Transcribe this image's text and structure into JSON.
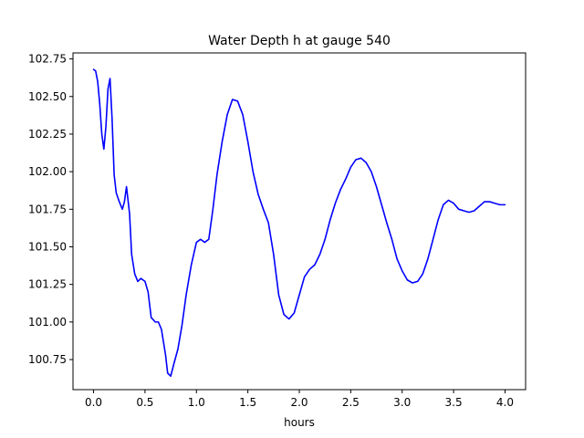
{
  "chart_data": {
    "type": "line",
    "title": "Water Depth h at gauge 540",
    "xlabel": "hours",
    "ylabel": "",
    "xlim": [
      -0.2,
      4.2
    ],
    "ylim": [
      100.55,
      102.79
    ],
    "grid": false,
    "x_ticks": [
      0.0,
      0.5,
      1.0,
      1.5,
      2.0,
      2.5,
      3.0,
      3.5,
      4.0
    ],
    "x_tick_labels": [
      "0.0",
      "0.5",
      "1.0",
      "1.5",
      "2.0",
      "2.5",
      "3.0",
      "3.5",
      "4.0"
    ],
    "y_ticks": [
      100.75,
      101.0,
      101.25,
      101.5,
      101.75,
      102.0,
      102.25,
      102.5,
      102.75
    ],
    "y_tick_labels": [
      "100.75",
      "101.00",
      "101.25",
      "101.50",
      "101.75",
      "102.00",
      "102.25",
      "102.50",
      "102.75"
    ],
    "series": [
      {
        "color": "#0000ff",
        "x": [
          0.0,
          0.02,
          0.04,
          0.06,
          0.08,
          0.1,
          0.12,
          0.14,
          0.16,
          0.18,
          0.2,
          0.22,
          0.25,
          0.28,
          0.3,
          0.32,
          0.35,
          0.37,
          0.4,
          0.43,
          0.46,
          0.5,
          0.53,
          0.56,
          0.6,
          0.63,
          0.66,
          0.7,
          0.72,
          0.75,
          0.78,
          0.82,
          0.86,
          0.9,
          0.95,
          1.0,
          1.04,
          1.08,
          1.12,
          1.16,
          1.2,
          1.25,
          1.3,
          1.35,
          1.4,
          1.45,
          1.5,
          1.55,
          1.6,
          1.65,
          1.7,
          1.75,
          1.8,
          1.85,
          1.9,
          1.95,
          2.0,
          2.05,
          2.1,
          2.15,
          2.2,
          2.25,
          2.3,
          2.35,
          2.4,
          2.45,
          2.5,
          2.55,
          2.6,
          2.65,
          2.7,
          2.75,
          2.8,
          2.85,
          2.9,
          2.95,
          3.0,
          3.05,
          3.1,
          3.15,
          3.2,
          3.25,
          3.3,
          3.35,
          3.4,
          3.45,
          3.5,
          3.55,
          3.6,
          3.65,
          3.7,
          3.75,
          3.8,
          3.85,
          3.9,
          3.95,
          4.0
        ],
        "values": [
          102.68,
          102.67,
          102.6,
          102.45,
          102.25,
          102.15,
          102.3,
          102.55,
          102.62,
          102.35,
          101.98,
          101.86,
          101.8,
          101.75,
          101.8,
          101.9,
          101.72,
          101.45,
          101.32,
          101.27,
          101.29,
          101.27,
          101.2,
          101.03,
          101.0,
          101.0,
          100.95,
          100.78,
          100.66,
          100.64,
          100.72,
          100.82,
          100.98,
          101.18,
          101.38,
          101.53,
          101.55,
          101.53,
          101.55,
          101.75,
          101.98,
          102.2,
          102.38,
          102.48,
          102.47,
          102.38,
          102.2,
          102.0,
          101.85,
          101.75,
          101.66,
          101.45,
          101.18,
          101.05,
          101.02,
          101.06,
          101.18,
          101.3,
          101.35,
          101.38,
          101.45,
          101.55,
          101.68,
          101.79,
          101.88,
          101.95,
          102.03,
          102.08,
          102.09,
          102.06,
          102.0,
          101.9,
          101.78,
          101.66,
          101.55,
          101.42,
          101.34,
          101.28,
          101.26,
          101.27,
          101.32,
          101.42,
          101.55,
          101.68,
          101.78,
          101.81,
          101.79,
          101.75,
          101.74,
          101.73,
          101.74,
          101.77,
          101.8,
          101.8,
          101.79,
          101.78,
          101.78
        ]
      }
    ]
  }
}
